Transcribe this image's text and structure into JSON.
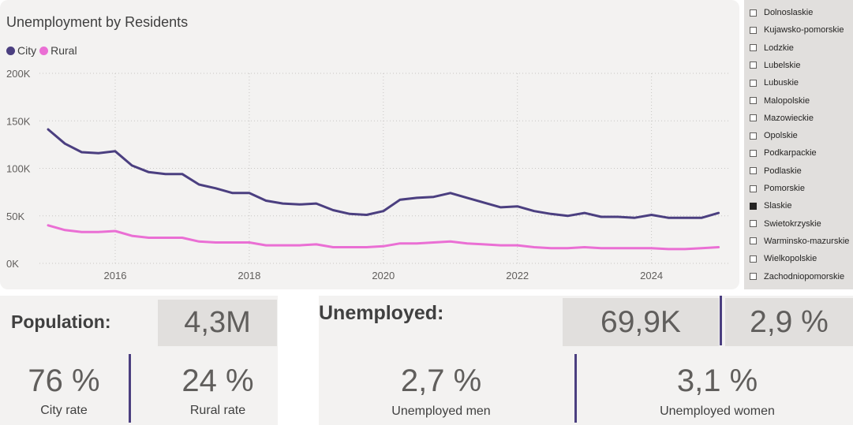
{
  "chart": {
    "title": "Unemployment by Residents",
    "legend": [
      {
        "name": "City",
        "color": "#4b3f80"
      },
      {
        "name": "Rural",
        "color": "#ea6fd4"
      }
    ]
  },
  "chart_data": {
    "type": "line",
    "title": "Unemployment by Residents",
    "xlabel": "",
    "ylabel": "",
    "x_ticks": [
      "2016",
      "2018",
      "2020",
      "2022",
      "2024"
    ],
    "y_ticks": [
      "0K",
      "50K",
      "100K",
      "150K",
      "200K"
    ],
    "ylim": [
      0,
      200000
    ],
    "xlim": [
      2014.87,
      2025.17
    ],
    "grid": true,
    "legend_position": "top-left",
    "x": [
      2015.0,
      2015.25,
      2015.5,
      2015.75,
      2016.0,
      2016.25,
      2016.5,
      2016.75,
      2017.0,
      2017.25,
      2017.5,
      2017.75,
      2018.0,
      2018.25,
      2018.5,
      2018.75,
      2019.0,
      2019.25,
      2019.5,
      2019.75,
      2020.0,
      2020.25,
      2020.5,
      2020.75,
      2021.0,
      2021.25,
      2021.5,
      2021.75,
      2022.0,
      2022.25,
      2022.5,
      2022.75,
      2023.0,
      2023.25,
      2023.5,
      2023.75,
      2024.0,
      2024.25,
      2024.5,
      2024.75,
      2025.0
    ],
    "series": [
      {
        "name": "City",
        "color": "#4b3f80",
        "values": [
          141000,
          126000,
          117000,
          116000,
          118000,
          103000,
          96000,
          94000,
          94000,
          83000,
          79000,
          74000,
          74000,
          66000,
          63000,
          62000,
          63000,
          56000,
          52000,
          51000,
          55000,
          67000,
          69000,
          70000,
          74000,
          69000,
          64000,
          59000,
          60000,
          55000,
          52000,
          50000,
          53000,
          49000,
          49000,
          48000,
          51000,
          48000,
          48000,
          48000,
          53000
        ]
      },
      {
        "name": "Rural",
        "color": "#ea6fd4",
        "values": [
          40000,
          35000,
          33000,
          33000,
          34000,
          29000,
          27000,
          27000,
          27000,
          23000,
          22000,
          22000,
          22000,
          19000,
          19000,
          19000,
          20000,
          17000,
          17000,
          17000,
          18000,
          21000,
          21000,
          22000,
          23000,
          21000,
          20000,
          19000,
          19000,
          17000,
          16000,
          16000,
          17000,
          16000,
          16000,
          16000,
          16000,
          15000,
          15000,
          16000,
          17000
        ]
      }
    ]
  },
  "slicer": {
    "items": [
      {
        "label": "Dolnoslaskie",
        "checked": false
      },
      {
        "label": "Kujawsko-pomorskie",
        "checked": false
      },
      {
        "label": "Lodzkie",
        "checked": false
      },
      {
        "label": "Lubelskie",
        "checked": false
      },
      {
        "label": "Lubuskie",
        "checked": false
      },
      {
        "label": "Malopolskie",
        "checked": false
      },
      {
        "label": "Mazowieckie",
        "checked": false
      },
      {
        "label": "Opolskie",
        "checked": false
      },
      {
        "label": "Podkarpackie",
        "checked": false
      },
      {
        "label": "Podlaskie",
        "checked": false
      },
      {
        "label": "Pomorskie",
        "checked": false
      },
      {
        "label": "Slaskie",
        "checked": true
      },
      {
        "label": "Swietokrzyskie",
        "checked": false
      },
      {
        "label": "Warminsko-mazurskie",
        "checked": false
      },
      {
        "label": "Wielkopolskie",
        "checked": false
      },
      {
        "label": "Zachodniopomorskie",
        "checked": false
      }
    ]
  },
  "population": {
    "label": "Population:",
    "value": "4,3M",
    "city_rate": "76 %",
    "city_rate_label": "City rate",
    "rural_rate": "24 %",
    "rural_rate_label": "Rural rate"
  },
  "unemployed": {
    "label": "Unemployed:",
    "count": "69,9K",
    "rate": "2,9 %",
    "men_rate": "2,7 %",
    "men_label": "Unemployed men",
    "women_rate": "3,1 %",
    "women_label": "Unemployed women"
  },
  "colors": {
    "accent": "#4b3f80",
    "rural": "#ea6fd4",
    "panel": "#f3f2f1",
    "box": "#e1dfdd"
  }
}
